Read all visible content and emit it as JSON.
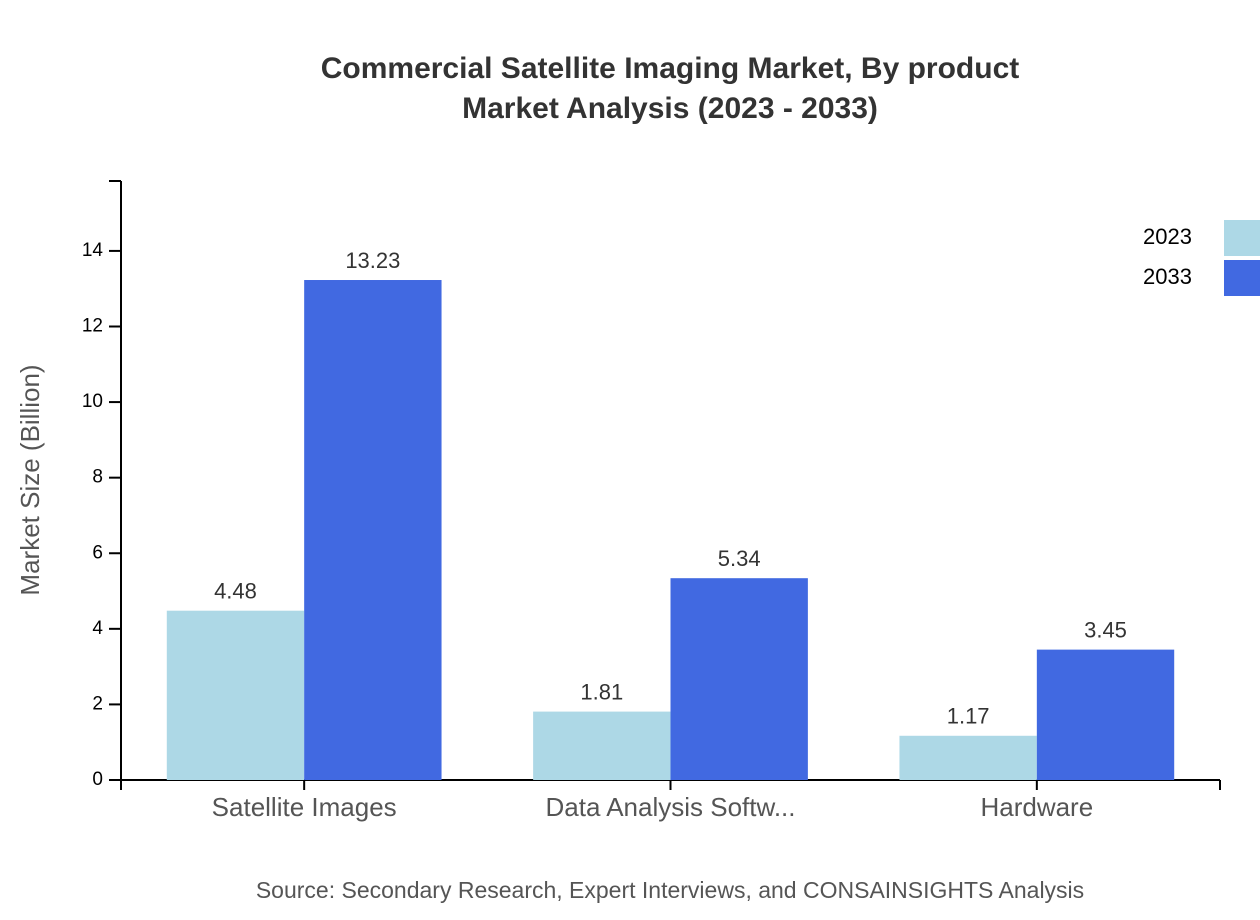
{
  "chart_data": {
    "type": "bar",
    "title": "Commercial Satellite Imaging Market, By product",
    "subtitle": "Market Analysis (2023 - 2033)",
    "y_label": "Market Size (Billion)",
    "source": "Source: Secondary Research, Expert Interviews, and CONSAINSIGHTS Analysis",
    "categories": [
      "Satellite Images",
      "Data Analysis Softw...",
      "Hardware"
    ],
    "series": [
      {
        "name": "2023",
        "color": "#add8e6",
        "values": [
          4.48,
          1.81,
          1.17
        ]
      },
      {
        "name": "2033",
        "color": "#4169e1",
        "values": [
          13.23,
          5.34,
          3.45
        ]
      }
    ],
    "ylim": [
      0,
      15.85
    ],
    "yticks": [
      0,
      2,
      4,
      6,
      8,
      10,
      12,
      14
    ],
    "legend": "top-right"
  }
}
